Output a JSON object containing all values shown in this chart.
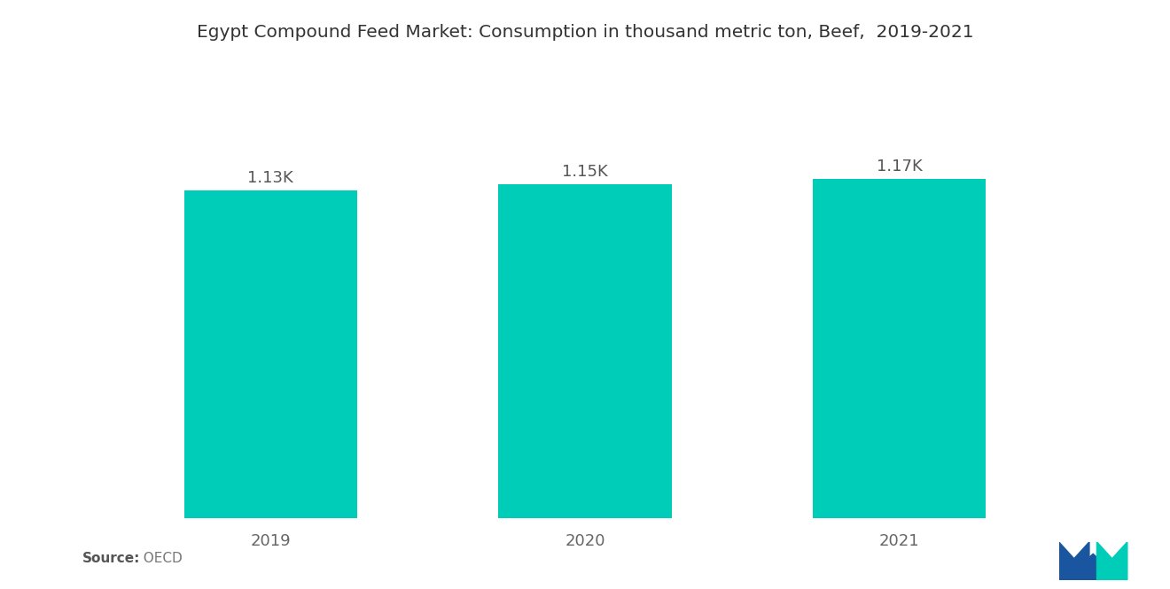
{
  "title": "Egypt Compound Feed Market: Consumption in thousand metric ton, Beef,  2019-2021",
  "categories": [
    "2019",
    "2020",
    "2021"
  ],
  "values": [
    1130,
    1150,
    1170
  ],
  "labels": [
    "1.13K",
    "1.15K",
    "1.17K"
  ],
  "bar_color": "#00CDB8",
  "background_color": "#ffffff",
  "title_fontsize": 14.5,
  "label_fontsize": 13,
  "tick_fontsize": 13,
  "source_bold": "Source:",
  "source_normal": "  OECD",
  "bar_width": 0.55,
  "ylim": [
    0,
    1380
  ],
  "logo_blue": "#1A56A0",
  "logo_teal": "#00CDB8"
}
